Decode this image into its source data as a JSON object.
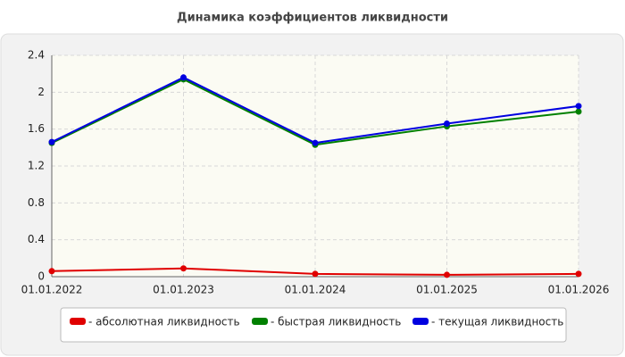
{
  "chart_data": {
    "type": "line",
    "title": "Динамика коэффициентов ликвидности",
    "categories": [
      "01.01.2022",
      "01.01.2023",
      "01.01.2024",
      "01.01.2025",
      "01.01.2026"
    ],
    "series": [
      {
        "name": "- абсолютная ликвидность",
        "color": "#e00000",
        "values": [
          0.06,
          0.09,
          0.03,
          0.02,
          0.03
        ]
      },
      {
        "name": "- быстрая ликвидность",
        "color": "#008000",
        "values": [
          1.45,
          2.14,
          1.43,
          1.63,
          1.79
        ]
      },
      {
        "name": "- текущая ликвидность",
        "color": "#0000e0",
        "values": [
          1.46,
          2.16,
          1.45,
          1.66,
          1.85
        ]
      }
    ],
    "ylim": [
      0,
      2.4
    ],
    "yticks": [
      0,
      0.4,
      0.8,
      1.2,
      1.6,
      2,
      2.4
    ],
    "grid": true
  }
}
